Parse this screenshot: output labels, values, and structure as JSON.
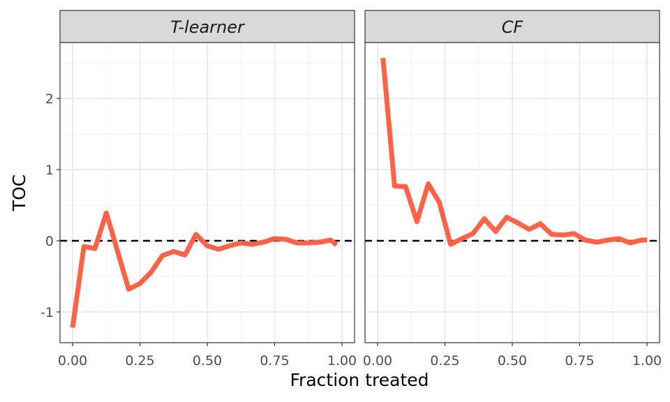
{
  "chart_data": {
    "type": "line",
    "xlabel": "Fraction treated",
    "ylabel": "TOC",
    "xlim": [
      0,
      1
    ],
    "ylim": [
      -1.45,
      2.75
    ],
    "x_ticks": [
      0.0,
      0.25,
      0.5,
      0.75,
      1.0
    ],
    "x_tick_labels": [
      "0.00",
      "0.25",
      "0.50",
      "0.75",
      "1.00"
    ],
    "y_ticks": [
      -1,
      0,
      1,
      2
    ],
    "y_tick_labels": [
      "-1",
      "0",
      "1",
      "2"
    ],
    "grid": true,
    "reference_line": {
      "y": 0,
      "style": "dashed",
      "color": "#000000"
    },
    "line_color": "#FF6347",
    "panels": [
      {
        "title": "T-learner",
        "x": [
          0.0,
          0.042,
          0.083,
          0.125,
          0.167,
          0.208,
          0.25,
          0.292,
          0.333,
          0.375,
          0.417,
          0.458,
          0.5,
          0.542,
          0.583,
          0.625,
          0.667,
          0.708,
          0.75,
          0.792,
          0.833,
          0.875,
          0.917,
          0.958,
          0.98
        ],
        "y": [
          -1.22,
          -0.08,
          -0.11,
          0.39,
          -0.15,
          -0.68,
          -0.6,
          -0.44,
          -0.21,
          -0.15,
          -0.2,
          0.09,
          -0.07,
          -0.12,
          -0.07,
          -0.03,
          -0.05,
          -0.02,
          0.03,
          0.02,
          -0.03,
          -0.03,
          -0.02,
          0.01,
          -0.06
        ]
      },
      {
        "title": "CF",
        "x": [
          0.02,
          0.063,
          0.104,
          0.146,
          0.188,
          0.229,
          0.271,
          0.313,
          0.354,
          0.396,
          0.438,
          0.479,
          0.521,
          0.563,
          0.604,
          0.646,
          0.688,
          0.729,
          0.771,
          0.813,
          0.854,
          0.896,
          0.938,
          0.979,
          1.0
        ],
        "y": [
          2.57,
          0.77,
          0.76,
          0.27,
          0.8,
          0.54,
          -0.05,
          0.03,
          0.1,
          0.31,
          0.13,
          0.33,
          0.25,
          0.16,
          0.24,
          0.09,
          0.08,
          0.1,
          0.01,
          -0.02,
          0.01,
          0.03,
          -0.03,
          0.01,
          0.01
        ]
      }
    ]
  }
}
